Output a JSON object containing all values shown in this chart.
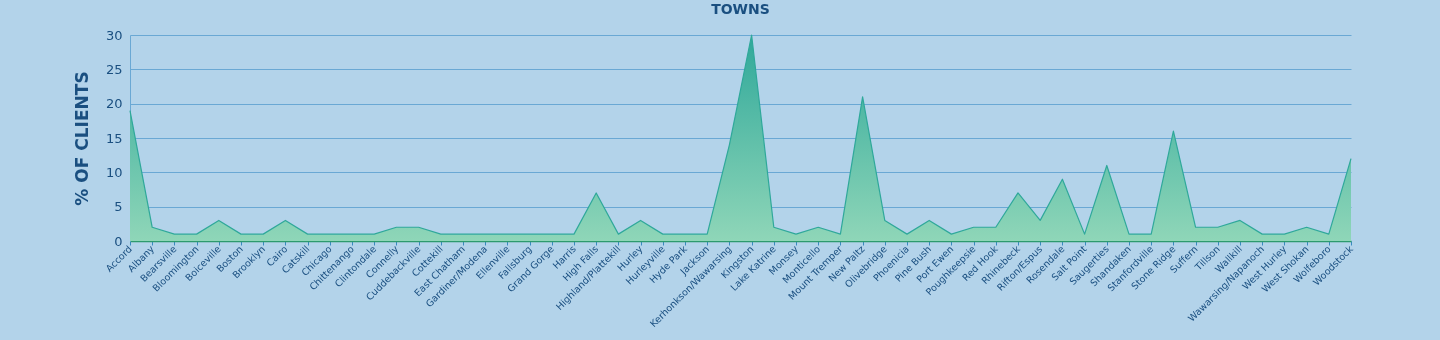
{
  "chart_data": {
    "type": "area",
    "title": "TOWNS",
    "ylabel": "% OF CLIENTS",
    "categories": [
      "Accord",
      "Albany",
      "Bearsville",
      "Bloomington",
      "Boiceville",
      "Boston",
      "Brooklyn",
      "Cairo",
      "Catskill",
      "Chicago",
      "Chittenango",
      "Clintondale",
      "Connelly",
      "Cuddebackville",
      "Cottekill",
      "East Chatham",
      "Gardiner/Modena",
      "Ellenville",
      "Fallsburg",
      "Grand Gorge",
      "Harris",
      "High Falls",
      "Highland/Plattekill",
      "Hurley",
      "Hurleyville",
      "Hyde Park",
      "Jackson",
      "Kerhonkson/Wawarsing",
      "Kingston",
      "Lake Katrine",
      "Monsey",
      "Monticello",
      "Mount Tremper",
      "New Paltz",
      "Olivebridge",
      "Phoenicia",
      "Pine Bush",
      "Port Ewen",
      "Poughkeepsie",
      "Red Hook",
      "Rhinebeck",
      "Rifton/Espus",
      "Rosendale",
      "Salt Point",
      "Saugerties",
      "Shandaken",
      "Stanfordville",
      "Stone Ridge",
      "Suffern",
      "Tillson",
      "Wallkill",
      "Wawarsing/Napanoch",
      "West Hurley",
      "West Shokan",
      "Wolfeboro",
      "Woodstock"
    ],
    "series": [
      {
        "color": "#2fa89a",
        "values": [
          19,
          2,
          1,
          1,
          3,
          1,
          1,
          3,
          1,
          1,
          1,
          1,
          2,
          2,
          1,
          1,
          1,
          1,
          1,
          1,
          1,
          7,
          1,
          3,
          1,
          1,
          1,
          14,
          30,
          2,
          1,
          2,
          1,
          21,
          3,
          1,
          3,
          1,
          2,
          2,
          7,
          3,
          9,
          1,
          11,
          1,
          1,
          16,
          2,
          2,
          3,
          1,
          1,
          2,
          1,
          12
        ]
      }
    ],
    "ylim": [
      0,
      30
    ],
    "yticks": [
      0,
      5,
      10,
      15,
      20,
      25,
      30
    ],
    "grid": "y"
  }
}
